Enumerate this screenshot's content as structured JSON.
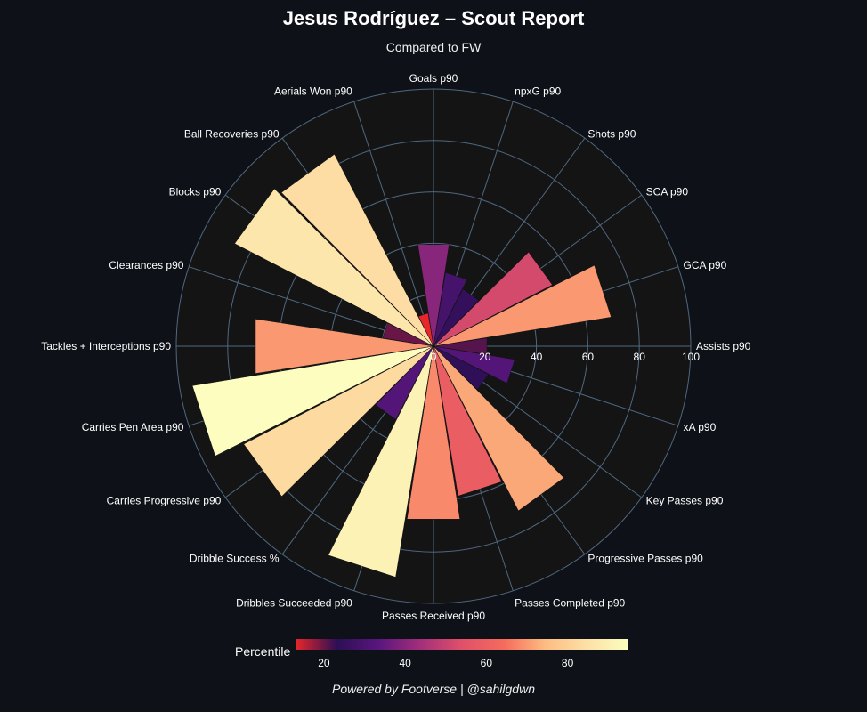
{
  "title": "Jesus Rodríguez – Scout Report",
  "subtitle": "Compared to FW",
  "footer": "Powered by Footverse | @sahilgdwn",
  "colorbar": {
    "title": "Percentile",
    "ticks": [
      "20",
      "40",
      "60",
      "80"
    ],
    "tick_values": [
      20,
      40,
      60,
      80
    ],
    "range": [
      13,
      95
    ]
  },
  "chart_data": {
    "type": "barpolar",
    "title": "Jesus Rodríguez – Scout Report",
    "subtitle": "Compared to FW",
    "radial_range": [
      0,
      100
    ],
    "radial_ticks": [
      "0",
      "20",
      "40",
      "60",
      "80",
      "100"
    ],
    "categories": [
      "Assists p90",
      "GCA p90",
      "SCA p90",
      "Shots p90",
      "npxG p90",
      "Goals p90",
      "Aerials Won p90",
      "Ball Recoveries p90",
      "Blocks p90",
      "Clearances p90",
      "Tackles + Interceptions p90",
      "Carries Pen Area p90",
      "Carries Progressive p90",
      "Dribble Success %",
      "Dribbles Succeeded p90",
      "Passes Received p90",
      "Passes Completed p90",
      "Progressive Passes p90",
      "Key Passes p90",
      "xA p90"
    ],
    "values": [
      21,
      70,
      52,
      25,
      29,
      40,
      13,
      84,
      87,
      20,
      70,
      95,
      83,
      32,
      91,
      68,
      59,
      72,
      24,
      32
    ],
    "colorscale": [
      "#e8262a",
      "#2c0f55",
      "#5a167e",
      "#a32f7a",
      "#e0506a",
      "#f56b5c",
      "#fdbc82",
      "#fde0a6",
      "#fcfdbf"
    ],
    "background": "#141414",
    "grid_color": "#4f6880"
  }
}
